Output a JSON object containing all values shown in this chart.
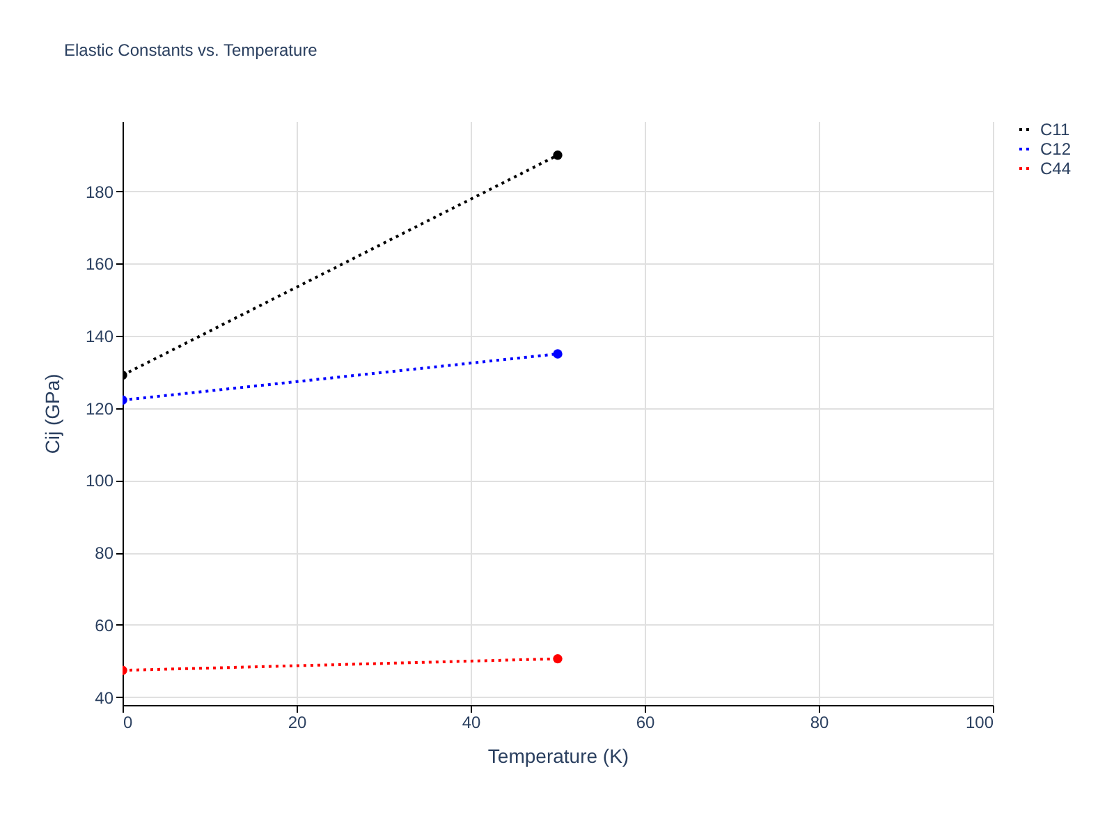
{
  "chart_data": {
    "type": "line",
    "title": "Elastic Constants vs. Temperature",
    "xlabel": "Temperature (K)",
    "ylabel": "Cij (GPa)",
    "x": [
      0,
      50
    ],
    "series": [
      {
        "name": "C11",
        "color": "#000000",
        "values": [
          129.1,
          190
        ]
      },
      {
        "name": "C12",
        "color": "#0000ff",
        "values": [
          122.2,
          135
        ]
      },
      {
        "name": "C44",
        "color": "#ff0000",
        "values": [
          47.4,
          50.6
        ]
      }
    ],
    "xlim": [
      0,
      100
    ],
    "xticks": [
      0,
      20,
      40,
      60,
      80,
      100
    ],
    "ylim": [
      37.8,
      199.4
    ],
    "yticks": [
      40,
      60,
      80,
      100,
      120,
      140,
      160,
      180
    ],
    "grid": true,
    "legend": "top right",
    "marker": "circle",
    "line_style": "dotted"
  }
}
